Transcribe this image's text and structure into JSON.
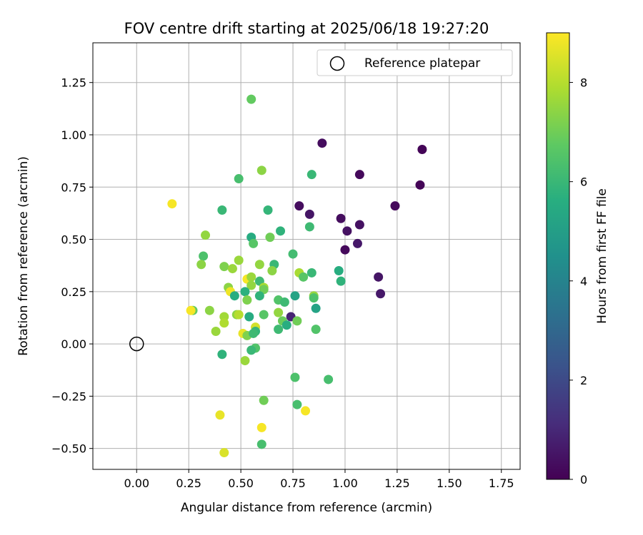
{
  "chart_data": {
    "type": "scatter",
    "title": "FOV centre drift starting at 2025/06/18 19:27:20",
    "xlabel": "Angular distance from reference (arcmin)",
    "ylabel": "Rotation from reference (arcmin)",
    "xlim": [
      -0.21,
      1.84
    ],
    "ylim": [
      -0.6,
      1.44
    ],
    "xticks": [
      "0.00",
      "0.25",
      "0.50",
      "0.75",
      "1.00",
      "1.25",
      "1.50",
      "1.75"
    ],
    "yticks": [
      "−0.50",
      "−0.25",
      "0.00",
      "0.25",
      "0.50",
      "0.75",
      "1.00",
      "1.25"
    ],
    "grid": true,
    "legend": {
      "placement": "top-right",
      "label": "Reference platepar"
    },
    "reference_point": {
      "x": 0.0,
      "y": 0.0
    },
    "colorbar": {
      "label": "Hours from first FF file",
      "range": [
        0,
        9
      ],
      "ticks": [
        "0",
        "2",
        "4",
        "6",
        "8"
      ],
      "colormap": "viridis"
    },
    "points": [
      {
        "x": 0.89,
        "y": 0.96,
        "h": 0.3
      },
      {
        "x": 1.37,
        "y": 0.93,
        "h": 0.1
      },
      {
        "x": 1.07,
        "y": 0.81,
        "h": 0.2
      },
      {
        "x": 1.36,
        "y": 0.76,
        "h": 0.1
      },
      {
        "x": 1.24,
        "y": 0.66,
        "h": 0.2
      },
      {
        "x": 0.78,
        "y": 0.66,
        "h": 0.3
      },
      {
        "x": 0.83,
        "y": 0.62,
        "h": 0.5
      },
      {
        "x": 0.98,
        "y": 0.6,
        "h": 0.3
      },
      {
        "x": 1.07,
        "y": 0.57,
        "h": 0.4
      },
      {
        "x": 1.01,
        "y": 0.54,
        "h": 0.4
      },
      {
        "x": 1.06,
        "y": 0.48,
        "h": 0.6
      },
      {
        "x": 1.0,
        "y": 0.45,
        "h": 0.2
      },
      {
        "x": 1.16,
        "y": 0.32,
        "h": 0.5
      },
      {
        "x": 1.17,
        "y": 0.24,
        "h": 0.6
      },
      {
        "x": 0.74,
        "y": 0.13,
        "h": 0.9
      },
      {
        "x": 0.55,
        "y": 1.17,
        "h": 6.8
      },
      {
        "x": 0.49,
        "y": 0.79,
        "h": 6.3
      },
      {
        "x": 0.6,
        "y": 0.83,
        "h": 7.4
      },
      {
        "x": 0.84,
        "y": 0.81,
        "h": 6.0
      },
      {
        "x": 0.41,
        "y": 0.64,
        "h": 6.0
      },
      {
        "x": 0.63,
        "y": 0.64,
        "h": 5.9
      },
      {
        "x": 0.17,
        "y": 0.67,
        "h": 8.9
      },
      {
        "x": 0.83,
        "y": 0.56,
        "h": 6.1
      },
      {
        "x": 0.33,
        "y": 0.52,
        "h": 7.5
      },
      {
        "x": 0.55,
        "y": 0.51,
        "h": 5.5
      },
      {
        "x": 0.69,
        "y": 0.54,
        "h": 5.8
      },
      {
        "x": 0.64,
        "y": 0.51,
        "h": 7.0
      },
      {
        "x": 0.56,
        "y": 0.48,
        "h": 6.6
      },
      {
        "x": 0.32,
        "y": 0.42,
        "h": 6.4
      },
      {
        "x": 0.49,
        "y": 0.4,
        "h": 7.6
      },
      {
        "x": 0.75,
        "y": 0.43,
        "h": 6.2
      },
      {
        "x": 0.31,
        "y": 0.38,
        "h": 7.4
      },
      {
        "x": 0.42,
        "y": 0.37,
        "h": 7.2
      },
      {
        "x": 0.46,
        "y": 0.36,
        "h": 7.6
      },
      {
        "x": 0.59,
        "y": 0.38,
        "h": 7.5
      },
      {
        "x": 0.66,
        "y": 0.38,
        "h": 6.0
      },
      {
        "x": 0.65,
        "y": 0.35,
        "h": 7.4
      },
      {
        "x": 0.78,
        "y": 0.34,
        "h": 7.8
      },
      {
        "x": 0.84,
        "y": 0.34,
        "h": 6.0
      },
      {
        "x": 0.97,
        "y": 0.35,
        "h": 5.6
      },
      {
        "x": 0.98,
        "y": 0.3,
        "h": 5.8
      },
      {
        "x": 0.8,
        "y": 0.32,
        "h": 6.6
      },
      {
        "x": 0.53,
        "y": 0.31,
        "h": 8.9
      },
      {
        "x": 0.55,
        "y": 0.32,
        "h": 7.6
      },
      {
        "x": 0.59,
        "y": 0.3,
        "h": 6.1
      },
      {
        "x": 0.44,
        "y": 0.27,
        "h": 7.4
      },
      {
        "x": 0.55,
        "y": 0.28,
        "h": 7.5
      },
      {
        "x": 0.61,
        "y": 0.27,
        "h": 7.8
      },
      {
        "x": 0.61,
        "y": 0.26,
        "h": 7.0
      },
      {
        "x": 0.45,
        "y": 0.25,
        "h": 8.8
      },
      {
        "x": 0.47,
        "y": 0.23,
        "h": 5.6
      },
      {
        "x": 0.52,
        "y": 0.25,
        "h": 5.7
      },
      {
        "x": 0.53,
        "y": 0.21,
        "h": 7.2
      },
      {
        "x": 0.59,
        "y": 0.23,
        "h": 5.8
      },
      {
        "x": 0.68,
        "y": 0.21,
        "h": 6.5
      },
      {
        "x": 0.71,
        "y": 0.2,
        "h": 6.1
      },
      {
        "x": 0.76,
        "y": 0.23,
        "h": 5.2
      },
      {
        "x": 0.85,
        "y": 0.23,
        "h": 7.5
      },
      {
        "x": 0.85,
        "y": 0.22,
        "h": 6.4
      },
      {
        "x": 0.86,
        "y": 0.17,
        "h": 5.2
      },
      {
        "x": 0.27,
        "y": 0.16,
        "h": 6.8
      },
      {
        "x": 0.26,
        "y": 0.16,
        "h": 8.9
      },
      {
        "x": 0.35,
        "y": 0.16,
        "h": 7.4
      },
      {
        "x": 0.42,
        "y": 0.13,
        "h": 7.7
      },
      {
        "x": 0.48,
        "y": 0.14,
        "h": 7.4
      },
      {
        "x": 0.49,
        "y": 0.14,
        "h": 8.0
      },
      {
        "x": 0.54,
        "y": 0.13,
        "h": 5.5
      },
      {
        "x": 0.61,
        "y": 0.14,
        "h": 6.6
      },
      {
        "x": 0.68,
        "y": 0.15,
        "h": 7.5
      },
      {
        "x": 0.7,
        "y": 0.11,
        "h": 6.9
      },
      {
        "x": 0.72,
        "y": 0.09,
        "h": 5.6
      },
      {
        "x": 0.77,
        "y": 0.11,
        "h": 7.0
      },
      {
        "x": 0.42,
        "y": 0.1,
        "h": 7.9
      },
      {
        "x": 0.57,
        "y": 0.08,
        "h": 8.4
      },
      {
        "x": 0.57,
        "y": 0.06,
        "h": 5.9
      },
      {
        "x": 0.38,
        "y": 0.06,
        "h": 7.6
      },
      {
        "x": 0.51,
        "y": 0.05,
        "h": 8.7
      },
      {
        "x": 0.53,
        "y": 0.04,
        "h": 7.2
      },
      {
        "x": 0.68,
        "y": 0.07,
        "h": 6.1
      },
      {
        "x": 0.86,
        "y": 0.07,
        "h": 6.5
      },
      {
        "x": 0.56,
        "y": 0.05,
        "h": 6.1
      },
      {
        "x": 0.41,
        "y": -0.05,
        "h": 5.8
      },
      {
        "x": 0.57,
        "y": -0.02,
        "h": 6.5
      },
      {
        "x": 0.55,
        "y": -0.03,
        "h": 6.0
      },
      {
        "x": 0.52,
        "y": -0.08,
        "h": 7.6
      },
      {
        "x": 0.76,
        "y": -0.16,
        "h": 6.4
      },
      {
        "x": 0.92,
        "y": -0.17,
        "h": 6.3
      },
      {
        "x": 0.61,
        "y": -0.27,
        "h": 7.0
      },
      {
        "x": 0.77,
        "y": -0.29,
        "h": 6.3
      },
      {
        "x": 0.4,
        "y": -0.34,
        "h": 8.7
      },
      {
        "x": 0.81,
        "y": -0.32,
        "h": 8.9
      },
      {
        "x": 0.6,
        "y": -0.4,
        "h": 8.9
      },
      {
        "x": 0.6,
        "y": -0.48,
        "h": 6.3
      },
      {
        "x": 0.42,
        "y": -0.52,
        "h": 8.5
      }
    ]
  }
}
